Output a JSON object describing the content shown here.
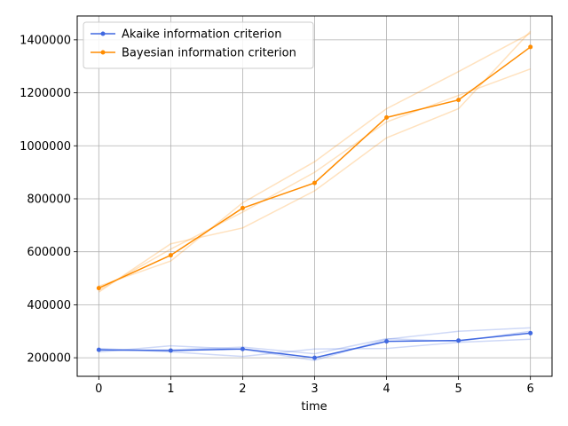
{
  "chart_data": {
    "type": "line",
    "title": "",
    "xlabel": "time",
    "ylabel": "",
    "x": [
      0,
      1,
      2,
      3,
      4,
      5,
      6
    ],
    "xlim": [
      -0.3,
      6.3
    ],
    "ylim": [
      130000,
      1490000
    ],
    "xticks": [
      0,
      1,
      2,
      3,
      4,
      5,
      6
    ],
    "yticks": [
      200000,
      400000,
      600000,
      800000,
      1000000,
      1200000,
      1400000
    ],
    "grid": true,
    "legend_position": "top-left",
    "series": [
      {
        "name": "Akaike information criterion",
        "color": "#4169e1",
        "values": [
          230000,
          227000,
          233000,
          200000,
          262000,
          265000,
          293000
        ],
        "runs": [
          [
            222000,
            245000,
            232000,
            190000,
            270000,
            300000,
            313000
          ],
          [
            235000,
            222000,
            205000,
            233000,
            235000,
            258000,
            270000
          ],
          [
            228000,
            230000,
            240000,
            215000,
            272000,
            262000,
            300000
          ]
        ]
      },
      {
        "name": "Bayesian information criterion",
        "color": "#ff8c00",
        "values": [
          463000,
          587000,
          765000,
          860000,
          1107000,
          1173000,
          1373000
        ],
        "runs": [
          [
            448000,
            630000,
            690000,
            830000,
            1030000,
            1140000,
            1432000
          ],
          [
            470000,
            565000,
            785000,
            940000,
            1140000,
            1280000,
            1425000
          ],
          [
            455000,
            610000,
            750000,
            900000,
            1090000,
            1190000,
            1290000
          ]
        ]
      }
    ]
  }
}
